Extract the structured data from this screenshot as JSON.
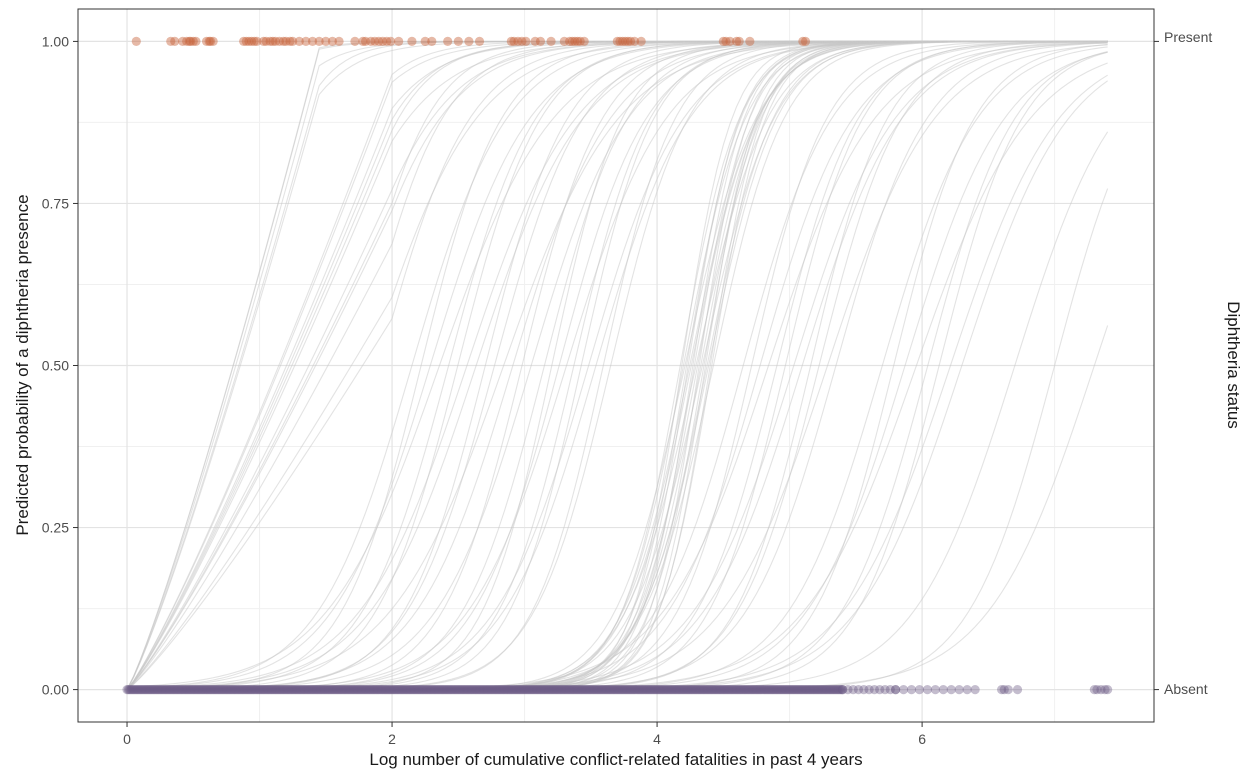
{
  "chart_data": {
    "type": "line",
    "xlabel": "Log number of cumulative conflict-related fatalities in past 4 years",
    "ylabel": "Predicted probability of a diphtheria presence",
    "right_axis_title": "Diphtheria status",
    "right_axis_labels": [
      "Absent",
      "Present"
    ],
    "xlim": [
      -0.37,
      7.75
    ],
    "ylim": [
      -0.05,
      1.05
    ],
    "x_ticks": [
      0,
      2,
      4,
      6
    ],
    "x_tick_labels": [
      "0",
      "2",
      "4",
      "6"
    ],
    "y_ticks": [
      0,
      0.25,
      0.5,
      0.75,
      1.0
    ],
    "y_tick_labels": [
      "0.00",
      "0.25",
      "0.50",
      "0.75",
      "1.00"
    ],
    "grid": true,
    "curve_x_max": 7.4,
    "curve_color": "#c8c8c8",
    "present_color": "#c8643c",
    "absent_color": "#6b5a85",
    "curve_groups": [
      {
        "x0": 0.6,
        "k": 4.0,
        "n": 5,
        "spread": 0.5,
        "break": 1.45
      },
      {
        "x0": 1.5,
        "k": 3.0,
        "n": 12,
        "spread": 0.8,
        "break": 2.0
      },
      {
        "x0": 2.6,
        "k": 2.8,
        "n": 14,
        "spread": 0.9
      },
      {
        "x0": 3.4,
        "k": 3.2,
        "n": 10,
        "spread": 0.5
      },
      {
        "x0": 4.3,
        "k": 4.5,
        "n": 22,
        "spread": 0.25
      },
      {
        "x0": 5.0,
        "k": 3.0,
        "n": 12,
        "spread": 0.7
      },
      {
        "x0": 6.0,
        "k": 2.8,
        "n": 8,
        "spread": 0.6
      },
      {
        "x0": 7.0,
        "k": 2.6,
        "n": 3,
        "spread": 0.6
      }
    ],
    "present_points_x": [
      0.07,
      0.33,
      0.36,
      0.42,
      0.45,
      0.47,
      0.48,
      0.5,
      0.52,
      0.6,
      0.62,
      0.63,
      0.65,
      0.88,
      0.9,
      0.92,
      0.94,
      0.96,
      0.98,
      1.03,
      1.05,
      1.08,
      1.1,
      1.12,
      1.15,
      1.18,
      1.2,
      1.23,
      1.25,
      1.3,
      1.35,
      1.4,
      1.45,
      1.5,
      1.55,
      1.6,
      1.72,
      1.78,
      1.8,
      1.84,
      1.87,
      1.9,
      1.93,
      1.96,
      1.99,
      2.05,
      2.15,
      2.25,
      2.3,
      2.42,
      2.5,
      2.58,
      2.66,
      2.9,
      2.92,
      2.95,
      2.98,
      3.01,
      3.08,
      3.12,
      3.2,
      3.3,
      3.34,
      3.36,
      3.38,
      3.4,
      3.42,
      3.45,
      3.7,
      3.72,
      3.74,
      3.76,
      3.78,
      3.8,
      3.83,
      3.88,
      4.5,
      4.52,
      4.55,
      4.6,
      4.62,
      4.7,
      5.1,
      5.12
    ],
    "absent_point_ranges": [
      {
        "from": 0,
        "to": 5.4,
        "step": 0.01
      },
      {
        "from": 5.4,
        "to": 5.8,
        "step": 0.04
      },
      {
        "from": 5.8,
        "to": 6.45,
        "step": 0.06
      }
    ],
    "absent_points_x_extra": [
      6.6,
      6.62,
      6.65,
      6.72,
      7.3,
      7.32,
      7.35,
      7.38,
      7.4
    ]
  }
}
